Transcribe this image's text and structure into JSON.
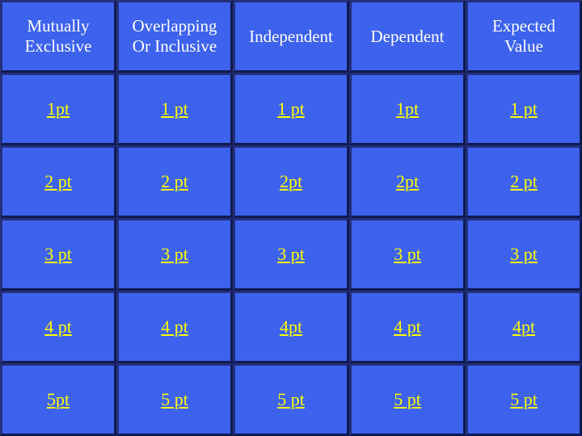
{
  "board": {
    "colors": {
      "tile": "#3d62ee",
      "category_text": "#ffffff",
      "point_text": "#ffff00",
      "grid": "#000000"
    },
    "categories": [
      "Mutually\nExclusive",
      "Overlapping\nOr Inclusive",
      "Independent",
      "Dependent",
      "Expected\nValue"
    ],
    "rows": [
      [
        "1pt",
        "1 pt",
        "1 pt",
        "1pt",
        "1 pt"
      ],
      [
        "2 pt",
        "2 pt",
        "2pt",
        "2pt",
        "2 pt"
      ],
      [
        "3 pt",
        "3 pt",
        "3 pt",
        "3 pt",
        "3 pt"
      ],
      [
        "4 pt",
        "4 pt",
        "4pt",
        "4 pt",
        "4pt"
      ],
      [
        "5pt",
        "5 pt",
        "5 pt",
        "5 pt",
        "5 pt"
      ]
    ]
  }
}
